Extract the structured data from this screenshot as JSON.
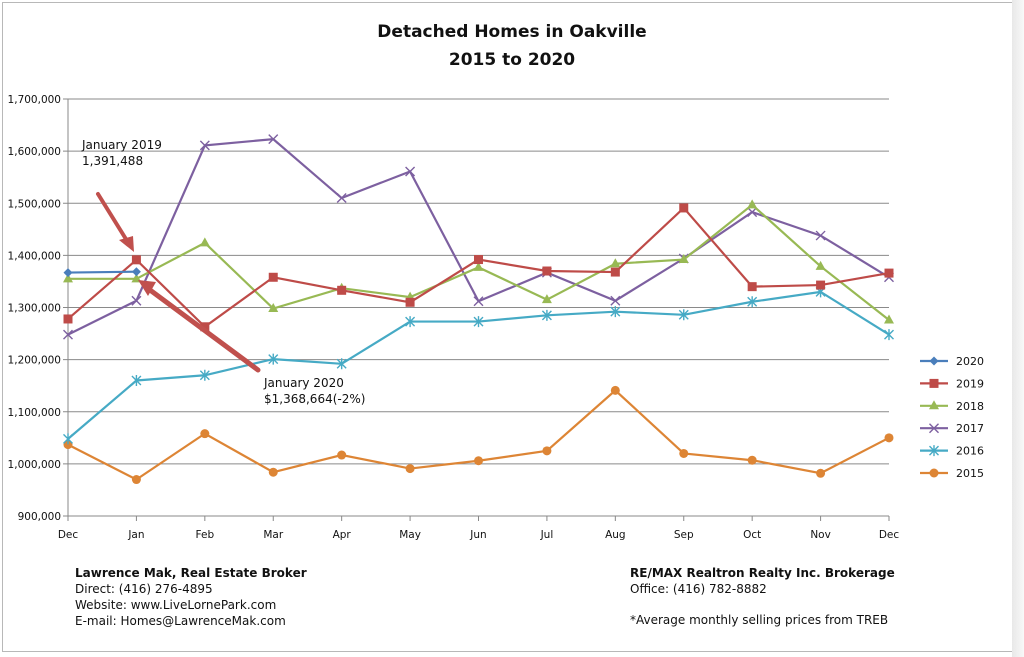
{
  "chart_data": {
    "type": "line",
    "title": "Detached Homes in Oakville",
    "subtitle": "2015 to 2020",
    "categories": [
      "Dec",
      "Jan",
      "Feb",
      "Mar",
      "Apr",
      "May",
      "Jun",
      "Jul",
      "Aug",
      "Sep",
      "Oct",
      "Nov",
      "Dec"
    ],
    "y_ticks": [
      "900,000",
      "1,000,000",
      "1,100,000",
      "1,200,000",
      "1,300,000",
      "1,400,000",
      "1,500,000",
      "1,600,000",
      "1,700,000"
    ],
    "ylim": [
      900000,
      1700000
    ],
    "grid": true,
    "legend_position": "right",
    "series": [
      {
        "name": "2020",
        "color": "#4a7ebb",
        "marker": "diamond",
        "values": [
          1367000,
          1368664,
          null,
          null,
          null,
          null,
          null,
          null,
          null,
          null,
          null,
          null,
          null
        ]
      },
      {
        "name": "2019",
        "color": "#be4b48",
        "marker": "square",
        "values": [
          1278000,
          1391488,
          1263000,
          1358000,
          1333000,
          1310000,
          1392000,
          1370000,
          1368000,
          1491000,
          1340000,
          1343000,
          1366000
        ]
      },
      {
        "name": "2018",
        "color": "#98b954",
        "marker": "triangle",
        "values": [
          1355000,
          1355000,
          1424000,
          1298000,
          1337000,
          1320000,
          1377000,
          1315000,
          1384000,
          1392000,
          1497000,
          1379000,
          1276000
        ]
      },
      {
        "name": "2017",
        "color": "#7d60a0",
        "marker": "x",
        "values": [
          1248000,
          1313000,
          1611000,
          1623000,
          1510000,
          1561000,
          1312000,
          1367000,
          1313000,
          1394000,
          1483000,
          1438000,
          1358000
        ]
      },
      {
        "name": "2016",
        "color": "#46aac5",
        "marker": "star",
        "values": [
          1048000,
          1160000,
          1170000,
          1201000,
          1192000,
          1273000,
          1273000,
          1285000,
          1292000,
          1286000,
          1311000,
          1330000,
          1248000
        ]
      },
      {
        "name": "2015",
        "color": "#dd8535",
        "marker": "circle",
        "values": [
          1037000,
          970000,
          1058000,
          984000,
          1017000,
          991000,
          1006000,
          1025000,
          1141000,
          1020000,
          1007000,
          982000,
          1050000
        ]
      }
    ],
    "annotations": [
      {
        "line1": "January 2019",
        "line2": "1,391,488"
      },
      {
        "line1": "January 2020",
        "line2": "$1,368,664(-2%)"
      }
    ]
  },
  "footer": {
    "left": {
      "name": "Lawrence Mak, Real Estate Broker",
      "direct": "Direct:  (416) 276-4895",
      "website": "Website:  www.LiveLornePark.com",
      "email": "E-mail:  Homes@LawrenceMak.com"
    },
    "right": {
      "brokerage": "RE/MAX Realtron Realty Inc. Brokerage",
      "office": "Office: (416) 782-8882",
      "note": "*Average monthly selling prices from TREB"
    }
  }
}
